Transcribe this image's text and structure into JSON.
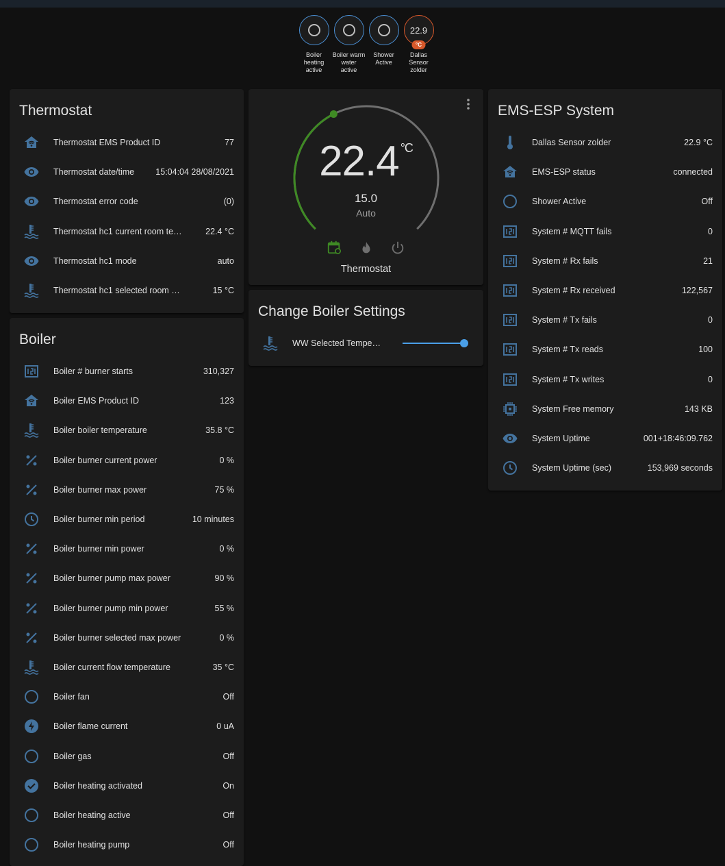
{
  "colors": {
    "accent": "#4a8fd4",
    "icon": "#44739e",
    "heat": "#3f8a24",
    "sensor": "#d8582a",
    "card": "#1c1c1c",
    "bg": "#111111"
  },
  "header_badges": [
    {
      "label": "Boiler heating active",
      "icon": "circle-outline",
      "state": "off"
    },
    {
      "label": "Boiler warm water active",
      "icon": "circle-outline",
      "state": "off"
    },
    {
      "label": "Shower Active",
      "icon": "circle-outline",
      "state": "off"
    },
    {
      "label": "Dallas Sensor zolder",
      "value": "22.9",
      "unit": "°C"
    }
  ],
  "thermostat_card": {
    "title": "Thermostat",
    "rows": [
      {
        "icon": "home-wifi",
        "label": "Thermostat EMS Product ID",
        "value": "77"
      },
      {
        "icon": "eye",
        "label": "Thermostat date/time",
        "value": "15:04:04 28/08/2021"
      },
      {
        "icon": "eye",
        "label": "Thermostat error code",
        "value": "(0)"
      },
      {
        "icon": "thermometer-water",
        "label": "Thermostat hc1 current room temper...",
        "value": "22.4 °C"
      },
      {
        "icon": "eye",
        "label": "Thermostat hc1 mode",
        "value": "auto"
      },
      {
        "icon": "thermometer-water",
        "label": "Thermostat hc1 selected room temper...",
        "value": "15 °C"
      }
    ]
  },
  "boiler_card": {
    "title": "Boiler",
    "rows": [
      {
        "icon": "counter",
        "label": "Boiler # burner starts",
        "value": "310,327"
      },
      {
        "icon": "home-wifi",
        "label": "Boiler EMS Product ID",
        "value": "123"
      },
      {
        "icon": "thermometer-water",
        "label": "Boiler boiler temperature",
        "value": "35.8 °C"
      },
      {
        "icon": "percent",
        "label": "Boiler burner current power",
        "value": "0 %"
      },
      {
        "icon": "percent",
        "label": "Boiler burner max power",
        "value": "75 %"
      },
      {
        "icon": "clock",
        "label": "Boiler burner min period",
        "value": "10 minutes"
      },
      {
        "icon": "percent",
        "label": "Boiler burner min power",
        "value": "0 %"
      },
      {
        "icon": "percent",
        "label": "Boiler burner pump max power",
        "value": "90 %"
      },
      {
        "icon": "percent",
        "label": "Boiler burner pump min power",
        "value": "55 %"
      },
      {
        "icon": "percent",
        "label": "Boiler burner selected max power",
        "value": "0 %"
      },
      {
        "icon": "thermometer-water",
        "label": "Boiler current flow temperature",
        "value": "35 °C"
      },
      {
        "icon": "circle-outline",
        "label": "Boiler fan",
        "value": "Off"
      },
      {
        "icon": "flash",
        "label": "Boiler flame current",
        "value": "0 uA"
      },
      {
        "icon": "circle-outline",
        "label": "Boiler gas",
        "value": "Off"
      },
      {
        "icon": "check-circle",
        "label": "Boiler heating activated",
        "value": "On"
      },
      {
        "icon": "circle-outline",
        "label": "Boiler heating active",
        "value": "Off"
      },
      {
        "icon": "circle-outline",
        "label": "Boiler heating pump",
        "value": "Off"
      }
    ]
  },
  "thermostat_control": {
    "current": "22.4",
    "unit": "°C",
    "target": "15.0",
    "mode": "Auto",
    "name": "Thermostat",
    "min": 5,
    "max": 30,
    "target_value": 15,
    "modes": [
      "auto",
      "heat",
      "off"
    ],
    "active_mode": "auto"
  },
  "boiler_settings": {
    "title": "Change Boiler Settings",
    "rows": [
      {
        "icon": "thermometer-water",
        "label": "WW Selected Temperat...",
        "slider_fraction": 1.0
      }
    ]
  },
  "system_card": {
    "title": "EMS-ESP System",
    "rows": [
      {
        "icon": "thermometer",
        "label": "Dallas Sensor zolder",
        "value": "22.9 °C"
      },
      {
        "icon": "home-wifi",
        "label": "EMS-ESP status",
        "value": "connected"
      },
      {
        "icon": "circle-outline",
        "label": "Shower Active",
        "value": "Off"
      },
      {
        "icon": "counter",
        "label": "System # MQTT fails",
        "value": "0"
      },
      {
        "icon": "counter",
        "label": "System # Rx fails",
        "value": "21"
      },
      {
        "icon": "counter",
        "label": "System # Rx received",
        "value": "122,567"
      },
      {
        "icon": "counter",
        "label": "System # Tx fails",
        "value": "0"
      },
      {
        "icon": "counter",
        "label": "System # Tx reads",
        "value": "100"
      },
      {
        "icon": "counter",
        "label": "System # Tx writes",
        "value": "0"
      },
      {
        "icon": "chip",
        "label": "System Free memory",
        "value": "143 KB"
      },
      {
        "icon": "eye",
        "label": "System Uptime",
        "value": "001+18:46:09.762"
      },
      {
        "icon": "clock",
        "label": "System Uptime (sec)",
        "value": "153,969 seconds"
      }
    ]
  }
}
